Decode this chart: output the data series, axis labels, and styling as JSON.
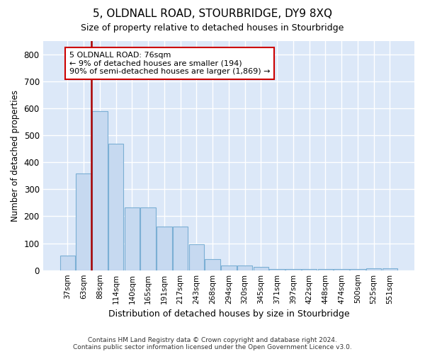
{
  "title": "5, OLDNALL ROAD, STOURBRIDGE, DY9 8XQ",
  "subtitle": "Size of property relative to detached houses in Stourbridge",
  "xlabel": "Distribution of detached houses by size in Stourbridge",
  "ylabel": "Number of detached properties",
  "bar_color": "#c6d9f0",
  "bar_edge_color": "#7bafd4",
  "background_color": "#dce8f8",
  "grid_color": "#ffffff",
  "categories": [
    "37sqm",
    "63sqm",
    "88sqm",
    "114sqm",
    "140sqm",
    "165sqm",
    "191sqm",
    "217sqm",
    "243sqm",
    "268sqm",
    "294sqm",
    "320sqm",
    "345sqm",
    "371sqm",
    "397sqm",
    "422sqm",
    "448sqm",
    "474sqm",
    "500sqm",
    "525sqm",
    "551sqm"
  ],
  "values": [
    55,
    358,
    590,
    468,
    232,
    232,
    162,
    162,
    95,
    42,
    18,
    18,
    12,
    5,
    5,
    5,
    5,
    5,
    5,
    8,
    8
  ],
  "ylim": [
    0,
    850
  ],
  "yticks": [
    0,
    100,
    200,
    300,
    400,
    500,
    600,
    700,
    800
  ],
  "vline_x": 1.5,
  "vline_color": "#aa0000",
  "annotation_text": "5 OLDNALL ROAD: 76sqm\n← 9% of detached houses are smaller (194)\n90% of semi-detached houses are larger (1,869) →",
  "annotation_box_color": "#ffffff",
  "annotation_box_edge": "#cc0000",
  "footer_line1": "Contains HM Land Registry data © Crown copyright and database right 2024.",
  "footer_line2": "Contains public sector information licensed under the Open Government Licence v3.0."
}
